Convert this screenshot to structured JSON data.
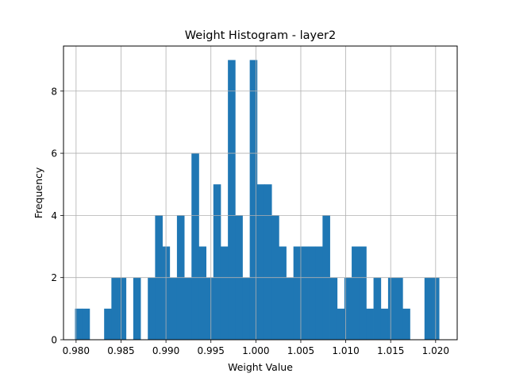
{
  "chart_data": {
    "type": "bar",
    "title": "Weight Histogram - layer2",
    "xlabel": "Weight Value",
    "ylabel": "Frequency",
    "xlim": [
      0.9786,
      1.0224
    ],
    "ylim": [
      0,
      9.45
    ],
    "xticks": [
      {
        "value": 0.98,
        "label": "0.980"
      },
      {
        "value": 0.985,
        "label": "0.985"
      },
      {
        "value": 0.99,
        "label": "0.990"
      },
      {
        "value": 0.995,
        "label": "0.995"
      },
      {
        "value": 1.0,
        "label": "1.000"
      },
      {
        "value": 1.005,
        "label": "1.005"
      },
      {
        "value": 1.01,
        "label": "1.010"
      },
      {
        "value": 1.015,
        "label": "1.015"
      },
      {
        "value": 1.02,
        "label": "1.020"
      }
    ],
    "yticks": [
      {
        "value": 0,
        "label": "0"
      },
      {
        "value": 2,
        "label": "2"
      },
      {
        "value": 4,
        "label": "4"
      },
      {
        "value": 6,
        "label": "6"
      },
      {
        "value": 8,
        "label": "8"
      }
    ],
    "grid": true,
    "bar_color": "#1f77b4",
    "bins": {
      "start": 0.97988,
      "end": 1.02038,
      "counts": [
        1,
        1,
        0,
        0,
        1,
        2,
        2,
        0,
        2,
        0,
        2,
        4,
        3,
        2,
        4,
        2,
        6,
        3,
        2,
        5,
        3,
        9,
        4,
        2,
        9,
        5,
        5,
        4,
        3,
        2,
        3,
        3,
        3,
        3,
        4,
        2,
        1,
        2,
        3,
        3,
        1,
        2,
        1,
        2,
        2,
        1,
        0,
        0,
        2,
        2
      ]
    }
  }
}
